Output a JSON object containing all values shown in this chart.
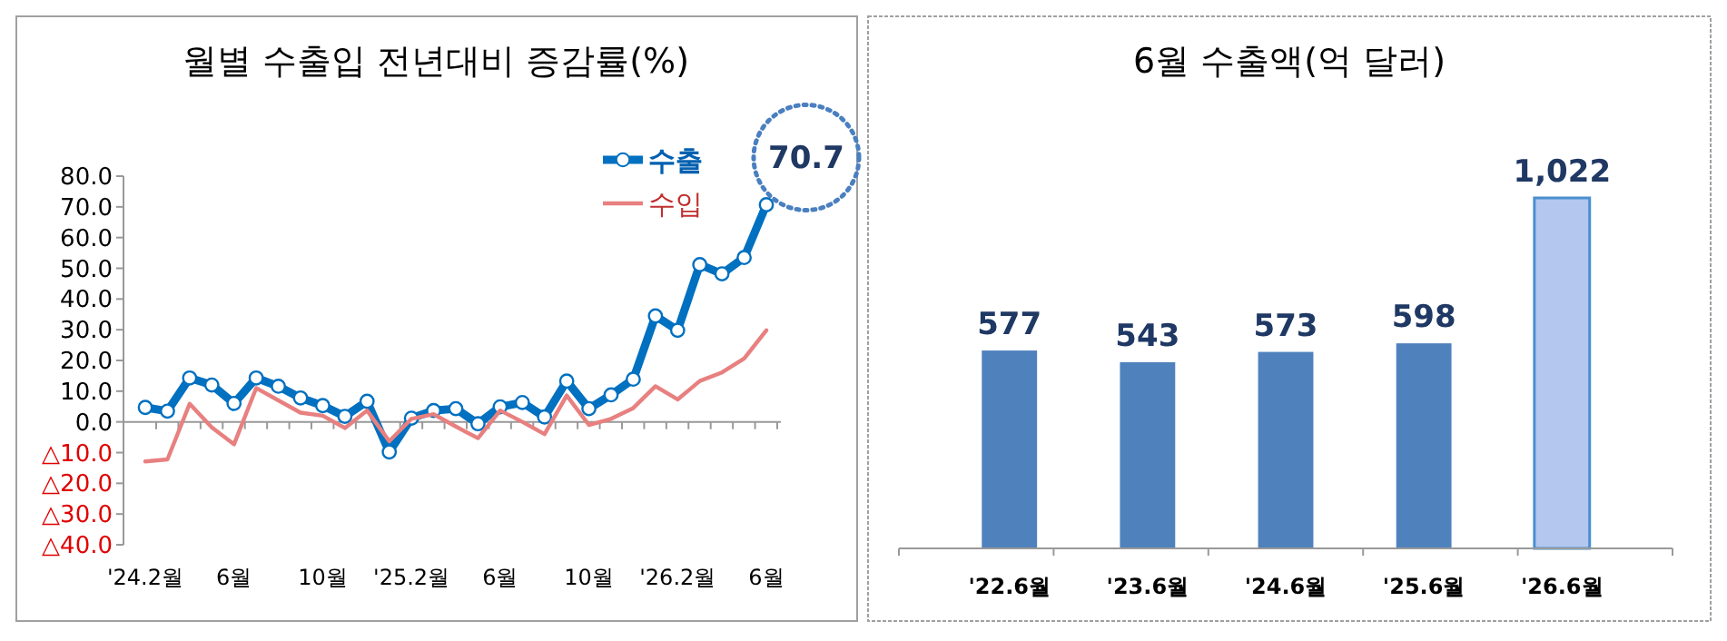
{
  "chart_data": [
    {
      "type": "line",
      "title": "월별 수출입 전년대비 증감률(%)",
      "categories": [
        "'24.2월",
        null,
        null,
        null,
        "6월",
        null,
        null,
        null,
        "10월",
        null,
        null,
        null,
        "'25.2월",
        null,
        null,
        null,
        "6월",
        null,
        null,
        null,
        "10월",
        null,
        null,
        null,
        "'26.2월",
        null,
        null,
        null,
        "6월"
      ],
      "series": [
        {
          "name": "수출",
          "color": "#0070c0",
          "marker": "circle",
          "values": [
            4.7,
            3.5,
            14.3,
            12,
            6,
            14.3,
            11.6,
            7.8,
            5.3,
            1.8,
            6.7,
            -9.8,
            1.2,
            3.7,
            4.3,
            -0.6,
            4.9,
            6.3,
            1.6,
            13.3,
            4.3,
            8.8,
            13.9,
            34.5,
            29.8,
            51.2,
            48.2,
            53.5,
            70.7
          ]
        },
        {
          "name": "수입",
          "color": "#e88080",
          "marker": "none",
          "values": [
            -12.9,
            -12.2,
            5.9,
            -1.8,
            -7.3,
            11,
            7,
            3,
            2,
            -2,
            3.7,
            -6.3,
            1,
            2.5,
            -1.5,
            -5.3,
            3.7,
            0,
            -4,
            8.6,
            -1,
            1,
            4.5,
            11.6,
            7.3,
            13.3,
            16.1,
            20.6,
            29.8
          ]
        }
      ],
      "ylim": [
        -40,
        80
      ],
      "yticks": [
        {
          "value": -40,
          "label": "△40.0"
        },
        {
          "value": -30,
          "label": "△30.0"
        },
        {
          "value": -20,
          "label": "△20.0"
        },
        {
          "value": -10,
          "label": "△10.0"
        },
        {
          "value": 0,
          "label": "0.0"
        },
        {
          "value": 10,
          "label": "10.0"
        },
        {
          "value": 20,
          "label": "20.0"
        },
        {
          "value": 30,
          "label": "30.0"
        },
        {
          "value": 40,
          "label": "40.0"
        },
        {
          "value": 50,
          "label": "50.0"
        },
        {
          "value": 60,
          "label": "60.0"
        },
        {
          "value": 70,
          "label": "70.0"
        },
        {
          "value": 80,
          "label": "80.0"
        }
      ],
      "legend": "top right",
      "annotations": [
        "70.7"
      ]
    },
    {
      "type": "bar",
      "title": "6월 수출액(억 달러)",
      "categories": [
        "'22.6월",
        "'23.6월",
        "'24.6월",
        "'25.6월",
        "'26.6월"
      ],
      "values": [
        577,
        543,
        573,
        598,
        1022
      ],
      "colors": [
        "#4f81bd",
        "#4f81bd",
        "#4f81bd",
        "#4f81bd",
        "#b4c7ee"
      ],
      "value_labels": [
        "577",
        "543",
        "573",
        "598",
        "1,022"
      ]
    }
  ]
}
